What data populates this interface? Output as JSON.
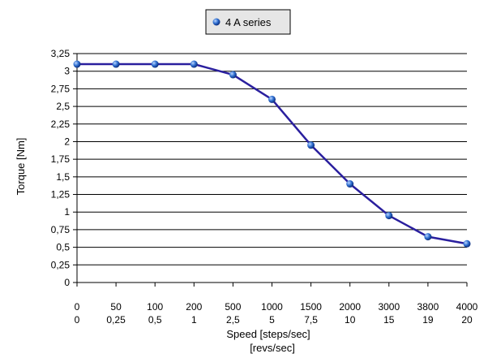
{
  "chart_data": {
    "type": "line",
    "ylabel": "Torque [Nm]",
    "xlabel_lines": [
      "Speed [steps/sec]",
      "[revs/sec]"
    ],
    "ylim": [
      0,
      3.25
    ],
    "yticks": [
      "0",
      "0,25",
      "0,5",
      "0,75",
      "1",
      "1,25",
      "1,5",
      "1,75",
      "2",
      "2,25",
      "2,5",
      "2,75",
      "3",
      "3,25"
    ],
    "categories_steps": [
      "0",
      "50",
      "100",
      "200",
      "500",
      "1000",
      "1500",
      "2000",
      "3000",
      "3800",
      "4000"
    ],
    "categories_revs": [
      "0",
      "0,25",
      "0,5",
      "1",
      "2,5",
      "5",
      "7,5",
      "10",
      "15",
      "19",
      "20"
    ],
    "series": [
      {
        "name": "4 A series",
        "values": [
          3.1,
          3.1,
          3.1,
          3.1,
          2.95,
          2.6,
          1.95,
          1.4,
          0.95,
          0.65,
          0.55
        ]
      }
    ],
    "grid": true,
    "legend_position": "top",
    "colors": {
      "line": "#2a1f9e",
      "marker": "#2f6fd0",
      "marker_highlight": "#bcd6ff",
      "grid": "#000000",
      "axis": "#000000",
      "legend_border": "#000000",
      "legend_bg": "#e6e6e6"
    }
  }
}
